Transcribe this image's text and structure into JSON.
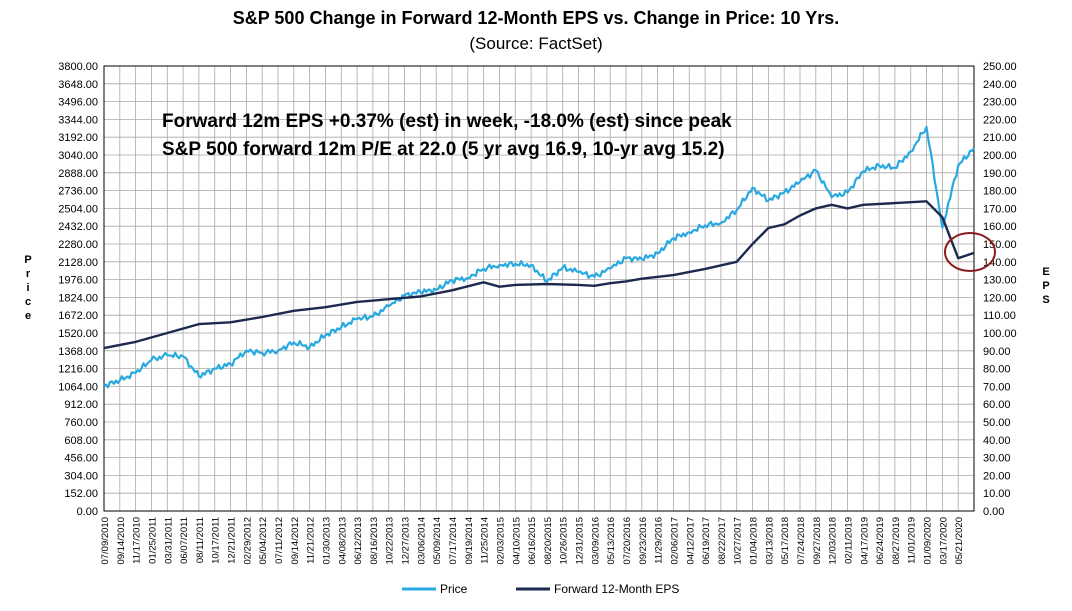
{
  "chart_data": {
    "type": "line",
    "title": "S&P 500 Change in Forward 12-Month EPS vs. Change in Price: 10 Yrs.",
    "subtitle": "(Source: FactSet)",
    "annotations": [
      "Forward 12m EPS +0.37% (est) in week, -18.0% (est) since peak",
      "S&P 500 forward 12m P/E at 22.0 (5 yr avg 16.9, 10-yr avg 15.2)"
    ],
    "ylabel": "Price",
    "y2label": "EPS",
    "ylim": [
      0,
      3800
    ],
    "y2lim": [
      0,
      250
    ],
    "y_ticks": [
      "0.00",
      "152.00",
      "304.00",
      "456.00",
      "608.00",
      "760.00",
      "912.00",
      "1064.00",
      "1216.00",
      "1368.00",
      "1520.00",
      "1672.00",
      "1824.00",
      "1976.00",
      "2128.00",
      "2280.00",
      "2432.00",
      "2504.00",
      "2736.00",
      "2888.00",
      "3040.00",
      "3192.00",
      "3344.00",
      "3496.00",
      "3648.00",
      "3800.00"
    ],
    "y2_ticks": [
      "0.00",
      "10.00",
      "20.00",
      "30.00",
      "40.00",
      "50.00",
      "60.00",
      "70.00",
      "80.00",
      "90.00",
      "100.00",
      "110.00",
      "120.00",
      "130.00",
      "140.00",
      "150.00",
      "160.00",
      "170.00",
      "180.00",
      "190.00",
      "200.00",
      "210.00",
      "220.00",
      "230.00",
      "240.00",
      "250.00"
    ],
    "x_labels": [
      "07/09/2010",
      "09/14/2010",
      "11/17/2010",
      "01/25/2011",
      "03/31/2011",
      "06/07/2011",
      "08/11/2011",
      "10/17/2011",
      "12/21/2011",
      "02/29/2012",
      "05/04/2012",
      "07/11/2012",
      "09/14/2012",
      "11/21/2012",
      "01/30/2013",
      "04/08/2013",
      "06/12/2013",
      "08/16/2013",
      "10/22/2013",
      "12/27/2013",
      "03/06/2014",
      "05/09/2014",
      "07/17/2014",
      "09/19/2014",
      "11/25/2014",
      "02/03/2015",
      "04/10/2015",
      "06/16/2015",
      "08/20/2015",
      "10/26/2015",
      "12/31/2015",
      "03/09/2016",
      "05/13/2016",
      "07/20/2016",
      "09/23/2016",
      "11/29/2016",
      "02/06/2017",
      "04/12/2017",
      "06/19/2017",
      "08/22/2017",
      "10/27/2017",
      "01/04/2018",
      "03/13/2018",
      "05/17/2018",
      "07/24/2018",
      "09/27/2018",
      "12/03/2018",
      "02/11/2019",
      "04/17/2019",
      "06/24/2019",
      "08/27/2019",
      "11/01/2019",
      "01/09/2020",
      "03/17/2020",
      "05/21/2020"
    ],
    "series": [
      {
        "name": "Price",
        "axis": "left",
        "color": "#29a9e0",
        "points": [
          [
            0,
            1070
          ],
          [
            1,
            1115
          ],
          [
            2,
            1180
          ],
          [
            3,
            1290
          ],
          [
            4,
            1330
          ],
          [
            5,
            1320
          ],
          [
            6,
            1150
          ],
          [
            7,
            1215
          ],
          [
            8,
            1255
          ],
          [
            9,
            1370
          ],
          [
            10,
            1350
          ],
          [
            11,
            1370
          ],
          [
            12,
            1440
          ],
          [
            13,
            1400
          ],
          [
            14,
            1500
          ],
          [
            15,
            1570
          ],
          [
            16,
            1640
          ],
          [
            17,
            1660
          ],
          [
            18,
            1750
          ],
          [
            19,
            1840
          ],
          [
            20,
            1870
          ],
          [
            21,
            1890
          ],
          [
            22,
            1970
          ],
          [
            23,
            1990
          ],
          [
            24,
            2070
          ],
          [
            25,
            2100
          ],
          [
            26,
            2110
          ],
          [
            27,
            2100
          ],
          [
            28,
            1960
          ],
          [
            29,
            2080
          ],
          [
            30,
            2040
          ],
          [
            31,
            2000
          ],
          [
            32,
            2070
          ],
          [
            33,
            2160
          ],
          [
            34,
            2150
          ],
          [
            35,
            2200
          ],
          [
            36,
            2330
          ],
          [
            37,
            2380
          ],
          [
            38,
            2440
          ],
          [
            39,
            2460
          ],
          [
            40,
            2570
          ],
          [
            41,
            2760
          ],
          [
            42,
            2650
          ],
          [
            43,
            2720
          ],
          [
            44,
            2810
          ],
          [
            45,
            2910
          ],
          [
            46,
            2680
          ],
          [
            47,
            2720
          ],
          [
            48,
            2900
          ],
          [
            49,
            2950
          ],
          [
            50,
            2930
          ],
          [
            51,
            3070
          ],
          [
            52,
            3280
          ],
          [
            53,
            2420
          ],
          [
            54,
            2950
          ],
          [
            55,
            3100
          ]
        ]
      },
      {
        "name": "Forward 12-Month EPS",
        "axis": "right",
        "color": "#1b2a4e",
        "points": [
          [
            0,
            91.5
          ],
          [
            2,
            95
          ],
          [
            4,
            100
          ],
          [
            6,
            105
          ],
          [
            8,
            106
          ],
          [
            10,
            109
          ],
          [
            12,
            112.5
          ],
          [
            14,
            114.5
          ],
          [
            16,
            117.5
          ],
          [
            18,
            119
          ],
          [
            20,
            120.5
          ],
          [
            22,
            124
          ],
          [
            24,
            128.5
          ],
          [
            25,
            126
          ],
          [
            26,
            127
          ],
          [
            28,
            127.5
          ],
          [
            30,
            127
          ],
          [
            31,
            126.5
          ],
          [
            32,
            128
          ],
          [
            33,
            129
          ],
          [
            34,
            130.5
          ],
          [
            36,
            132.5
          ],
          [
            38,
            136
          ],
          [
            40,
            140
          ],
          [
            41,
            150
          ],
          [
            42,
            159
          ],
          [
            43,
            161
          ],
          [
            44,
            166
          ],
          [
            45,
            170
          ],
          [
            46,
            172
          ],
          [
            47,
            170
          ],
          [
            48,
            172
          ],
          [
            50,
            173
          ],
          [
            52,
            174
          ],
          [
            53,
            165
          ],
          [
            54,
            142
          ],
          [
            55,
            145
          ]
        ]
      }
    ],
    "legend": [
      "Price",
      "Forward 12-Month EPS"
    ],
    "legend_position": "bottom-center",
    "grid": true
  }
}
